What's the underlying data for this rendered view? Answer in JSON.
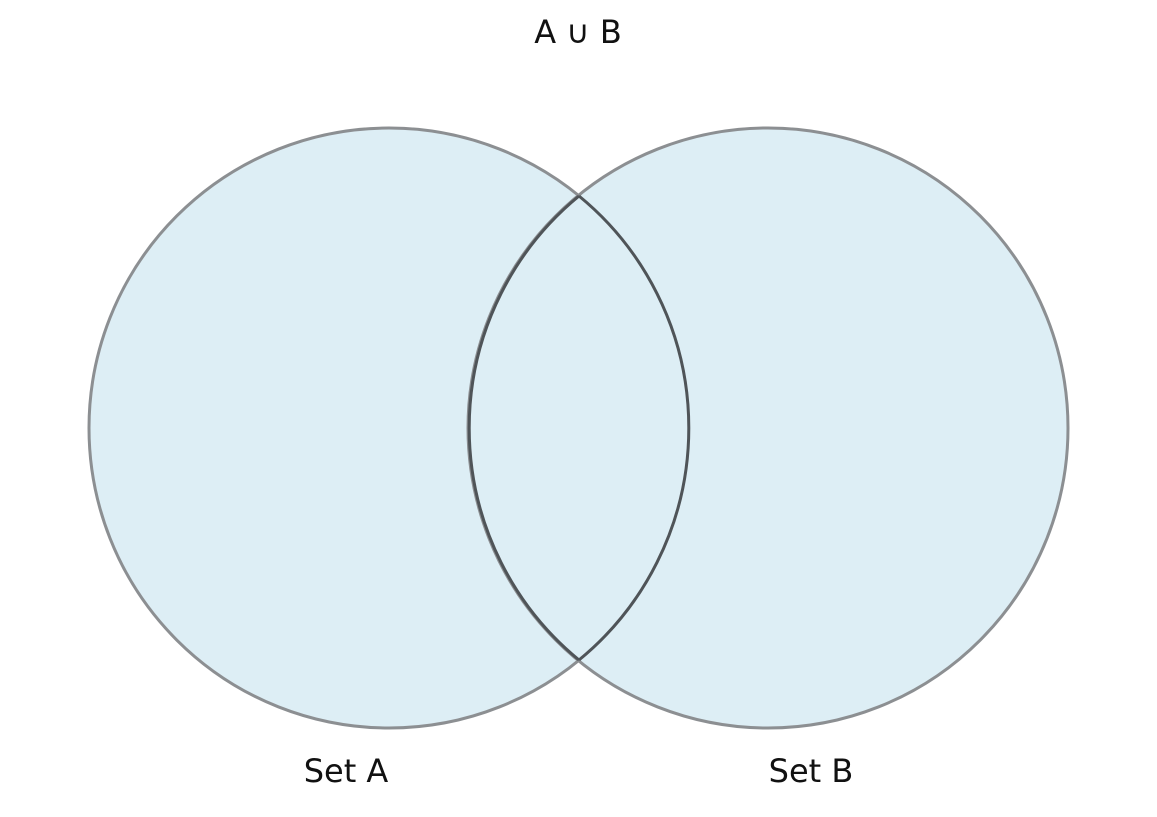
{
  "diagram": {
    "title": "A ∪ B",
    "sets": [
      {
        "label": "Set A"
      },
      {
        "label": "Set B"
      }
    ],
    "colors": {
      "fill": "#ddeef5",
      "outline": "#8c8f92",
      "overlap_outline": "#4f5458",
      "text": "#111111"
    }
  }
}
